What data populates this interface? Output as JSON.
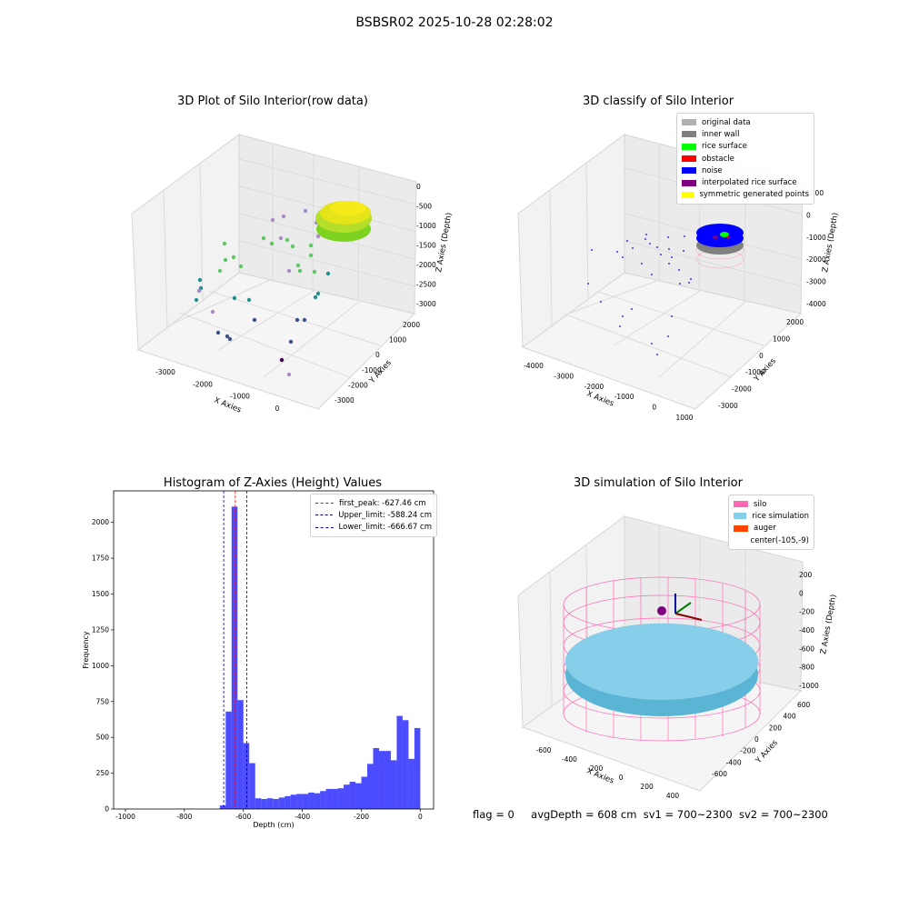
{
  "figure": {
    "suptitle": "BSBSR02 2025-10-28 02:28:02",
    "footer": {
      "flag": "flag = 0",
      "avg_depth": "avgDepth = 608 cm",
      "sv1": "sv1 = 700~2300",
      "sv2": "sv2 = 700~2300"
    }
  },
  "panels": {
    "raw": {
      "title": "3D Plot of Silo Interior(row data)",
      "xlabel": "X Axies",
      "ylabel": "Y Axies",
      "zlabel": "Z Axies (Depth)",
      "xticks": [
        "-3000",
        "-2000",
        "-1000",
        "0"
      ],
      "yticks": [
        "-3000",
        "-2000",
        "-1000",
        "0",
        "1000",
        "2000"
      ],
      "zticks": [
        "0",
        "-500",
        "-1000",
        "-1500",
        "-2000",
        "-2500",
        "-3000"
      ]
    },
    "classify": {
      "title": "3D classify of Silo Interior",
      "xlabel": "X Axies",
      "ylabel": "Y Axies",
      "zlabel": "Z Axies (Depth)",
      "xticks": [
        "-4000",
        "-3000",
        "-2000",
        "-1000",
        "0",
        "1000"
      ],
      "yticks": [
        "-3000",
        "-2000",
        "-1000",
        "0",
        "1000",
        "2000"
      ],
      "zticks": [
        "1000",
        "0",
        "-1000",
        "-2000",
        "-3000",
        "-4000"
      ],
      "legend": [
        {
          "label": "original data",
          "color": "#b0b0b0"
        },
        {
          "label": "inner wall",
          "color": "#808080"
        },
        {
          "label": "rice surface",
          "color": "#00ff00"
        },
        {
          "label": "obstacle",
          "color": "#ff0000"
        },
        {
          "label": "noise",
          "color": "#0000ff"
        },
        {
          "label": "interpolated rice surface",
          "color": "#800080"
        },
        {
          "label": "symmetric generated points",
          "color": "#ffff00"
        }
      ]
    },
    "histogram": {
      "title": "Histogram of Z-Axies (Height) Values",
      "xlabel": "Depth (cm)",
      "ylabel": "Frequency",
      "legend": [
        {
          "label": "first_peak: -627.46 cm",
          "color": "#ff0000"
        },
        {
          "label": "Upper_limit: -588.24 cm",
          "color": "#0000aa"
        },
        {
          "label": "Lower_limit: -666.67 cm",
          "color": "#0000aa"
        }
      ]
    },
    "simulation": {
      "title": "3D simulation of Silo Interior",
      "xlabel": "X Axies",
      "ylabel": "Y Axies",
      "zlabel": "Z Axies (Depth)",
      "xticks": [
        "-600",
        "-400",
        "-200",
        "0",
        "200",
        "400"
      ],
      "yticks": [
        "-600",
        "-400",
        "-200",
        "0",
        "200",
        "400",
        "600"
      ],
      "zticks": [
        "200",
        "0",
        "-200",
        "-400",
        "-600",
        "-800",
        "-1000"
      ],
      "legend": [
        {
          "label": "silo",
          "color": "#ff69b4"
        },
        {
          "label": "rice simulation",
          "color": "#87ceeb"
        },
        {
          "label": "auger",
          "color": "#ff4500"
        },
        {
          "label": "center(-105,-9)",
          "color": ""
        }
      ]
    }
  },
  "chart_data": {
    "type": "bar",
    "title": "Histogram of Z-Axies (Height) Values",
    "xlabel": "Depth (cm)",
    "ylabel": "Frequency",
    "xlim": [
      -1040,
      45
    ],
    "ylim": [
      0,
      2220
    ],
    "xticks": [
      -1000,
      -800,
      -600,
      -400,
      -200,
      0
    ],
    "yticks": [
      0,
      250,
      500,
      750,
      1000,
      1250,
      1500,
      1750,
      2000
    ],
    "bin_width": 20,
    "bin_starts": [
      -680,
      -660,
      -640,
      -620,
      -600,
      -580,
      -560,
      -540,
      -520,
      -500,
      -480,
      -460,
      -440,
      -420,
      -400,
      -380,
      -360,
      -340,
      -320,
      -300,
      -280,
      -260,
      -240,
      -220,
      -200,
      -180,
      -160,
      -140,
      -120,
      -100,
      -80,
      -60,
      -40,
      -20
    ],
    "values": [
      25,
      680,
      2110,
      760,
      460,
      320,
      75,
      70,
      75,
      70,
      80,
      90,
      100,
      105,
      105,
      115,
      110,
      125,
      140,
      140,
      145,
      170,
      190,
      180,
      225,
      315,
      425,
      405,
      405,
      340,
      650,
      620,
      350,
      565
    ],
    "vlines": [
      {
        "name": "first_peak",
        "value": -627.46,
        "color": "#ff0000"
      },
      {
        "name": "Upper_limit",
        "value": -588.24,
        "color": "#0000aa"
      },
      {
        "name": "Lower_limit",
        "value": -666.67,
        "color": "#0000aa"
      }
    ],
    "bar_color": "#0000ff",
    "grid": false,
    "legend_position": "upper right"
  }
}
